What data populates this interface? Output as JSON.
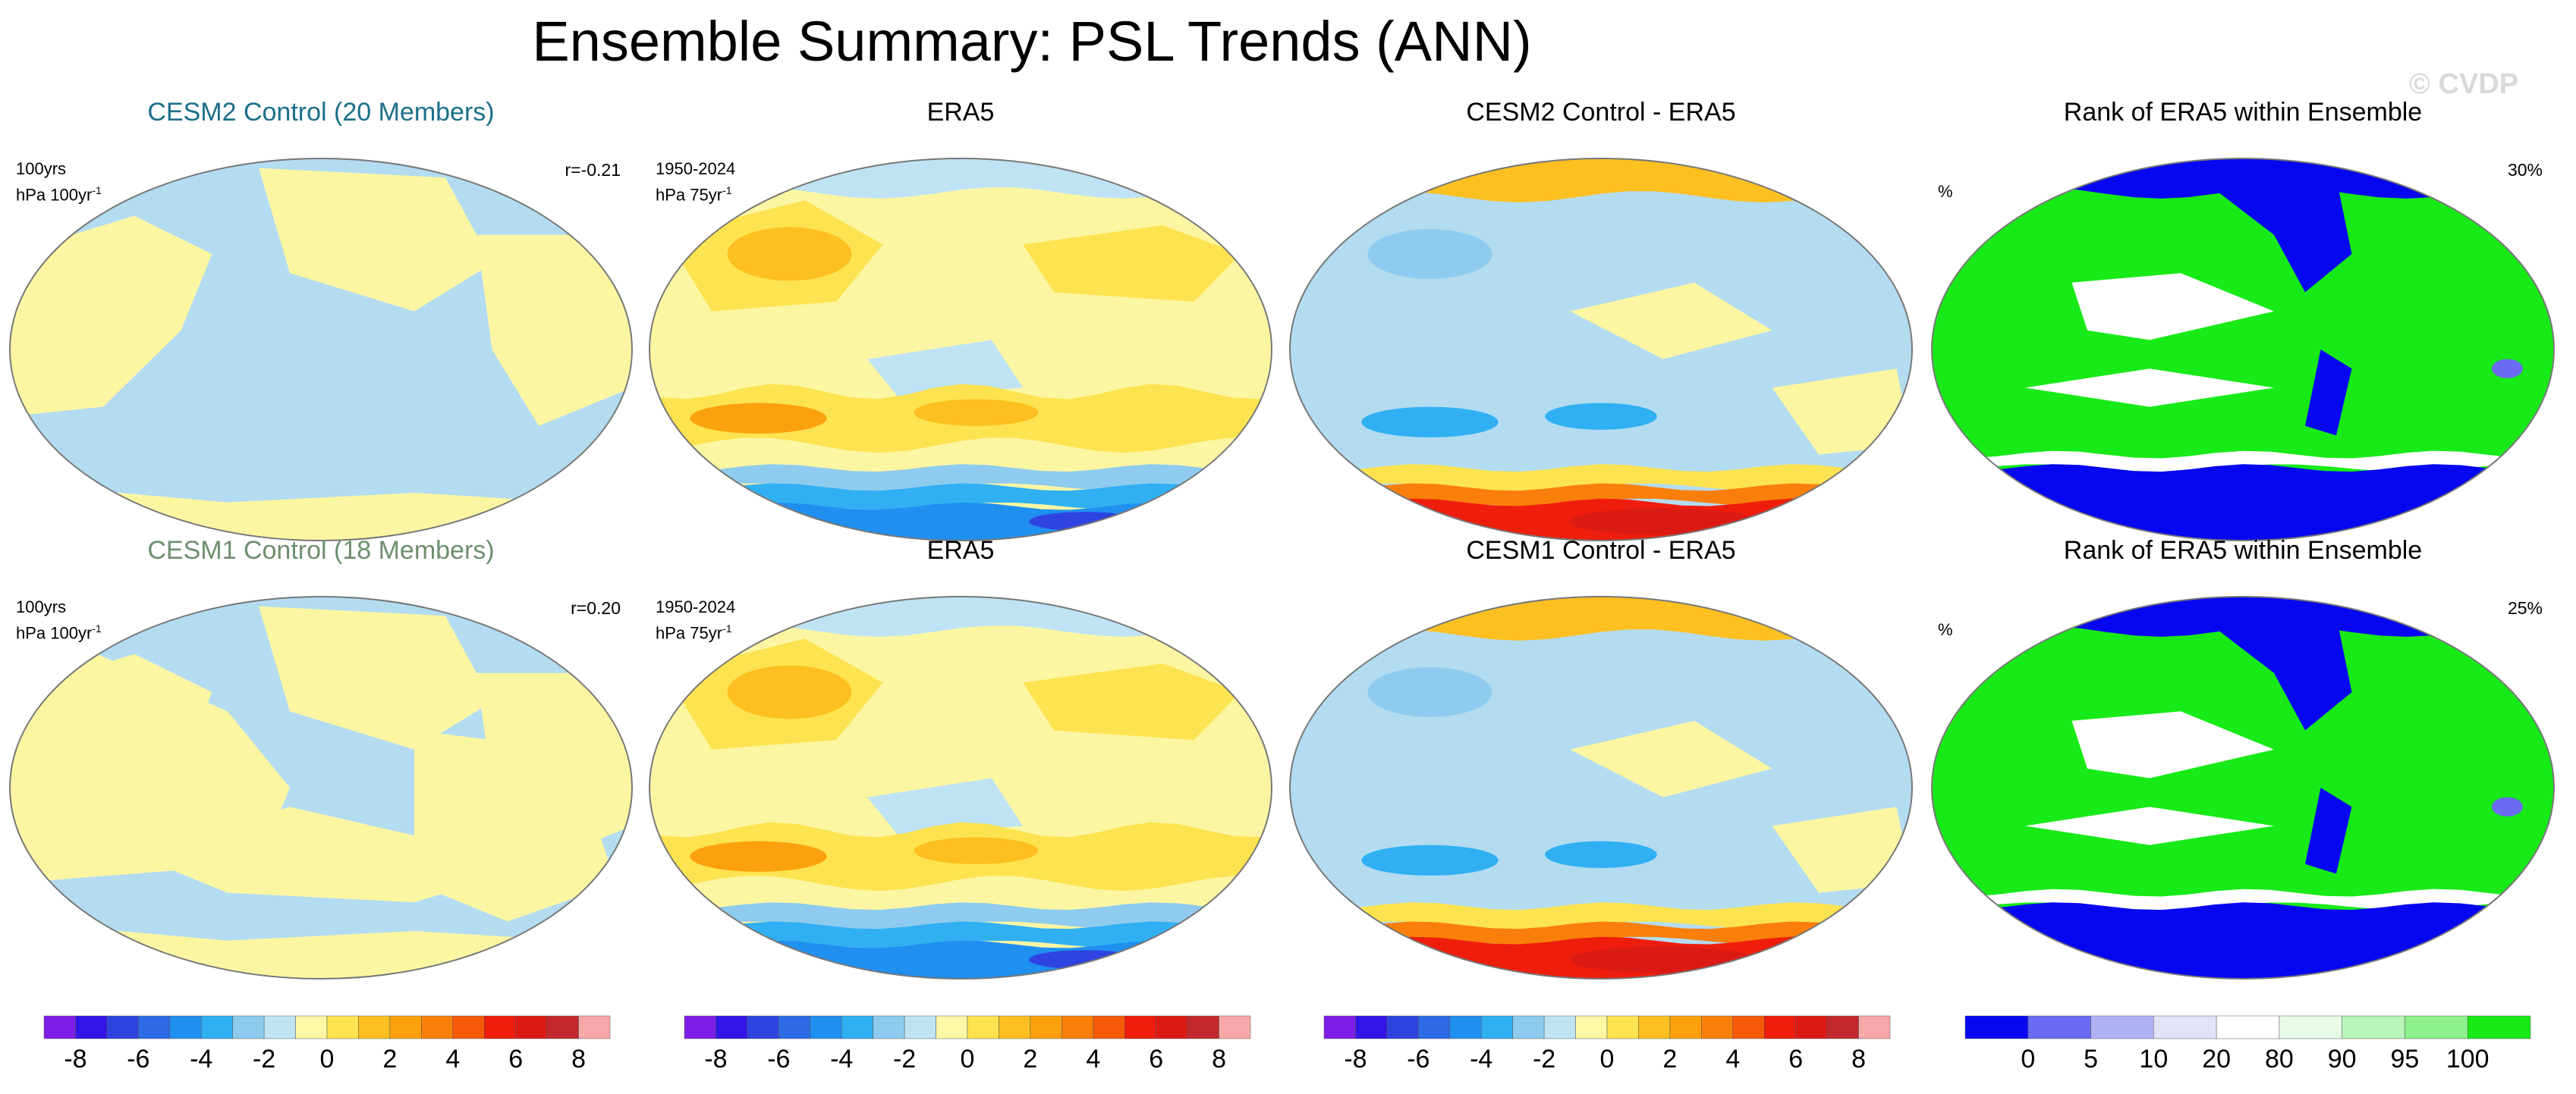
{
  "title": "Ensemble Summary: PSL Trends (ANN)",
  "watermark": "© CVDP",
  "colors": {
    "cesm2_title": "#1b6f8a",
    "cesm1_title": "#6e8f6e",
    "ocean_blue": "#b3dcf1",
    "land_yellow": "#fcf6a3"
  },
  "rows": [
    {
      "panels": [
        {
          "title": "CESM2 Control (20 Members)",
          "left_line1": "100yrs",
          "left_line2": "hPa 100yr",
          "left_sup": "-1",
          "right_text": "r=-0.21",
          "kind": "model"
        },
        {
          "title": "ERA5",
          "left_line1": "1950-2024",
          "left_line2": "hPa 75yr",
          "left_sup": "-1",
          "right_text": "",
          "kind": "obs"
        },
        {
          "title": "CESM2 Control - ERA5",
          "left_line1": "",
          "left_line2": "",
          "left_sup": "",
          "right_text": "",
          "kind": "diff"
        },
        {
          "title": "Rank of ERA5 within Ensemble",
          "left_line1": "%",
          "left_line2": "",
          "left_sup": "",
          "right_text": "30%",
          "kind": "rank"
        }
      ]
    },
    {
      "panels": [
        {
          "title": "CESM1 Control (18 Members)",
          "left_line1": "100yrs",
          "left_line2": "hPa 100yr",
          "left_sup": "-1",
          "right_text": "r=0.20",
          "kind": "model"
        },
        {
          "title": "ERA5",
          "left_line1": "1950-2024",
          "left_line2": "hPa 75yr",
          "left_sup": "-1",
          "right_text": "",
          "kind": "obs"
        },
        {
          "title": "CESM1 Control - ERA5",
          "left_line1": "",
          "left_line2": "",
          "left_sup": "",
          "right_text": "",
          "kind": "diff"
        },
        {
          "title": "Rank of ERA5 within Ensemble",
          "left_line1": "%",
          "left_line2": "",
          "left_sup": "",
          "right_text": "25%",
          "kind": "rank"
        }
      ]
    }
  ],
  "colorbars": {
    "trend": {
      "colors": [
        "#7d1de8",
        "#3213e8",
        "#2e43e0",
        "#2c6be5",
        "#1f8ff0",
        "#30b0f3",
        "#8fcbee",
        "#bfe3f4",
        "#fdf7a6",
        "#fde34f",
        "#fdc020",
        "#fca10e",
        "#f97f0a",
        "#f75a08",
        "#ef1d0c",
        "#dc1a14",
        "#c3282c",
        "#f8a8a8"
      ],
      "labels": [
        "-8",
        "-6",
        "-4",
        "-2",
        "0",
        "2",
        "4",
        "6",
        "8"
      ]
    },
    "rank": {
      "colors": [
        "#0606f0",
        "#6a6af3",
        "#b1b1f6",
        "#e2e2fb",
        "#ffffff",
        "#e7fbe7",
        "#b8f5b8",
        "#8cf08c",
        "#17ea17"
      ],
      "labels": [
        "0",
        "5",
        "10",
        "20",
        "80",
        "90",
        "95",
        "100"
      ]
    }
  }
}
